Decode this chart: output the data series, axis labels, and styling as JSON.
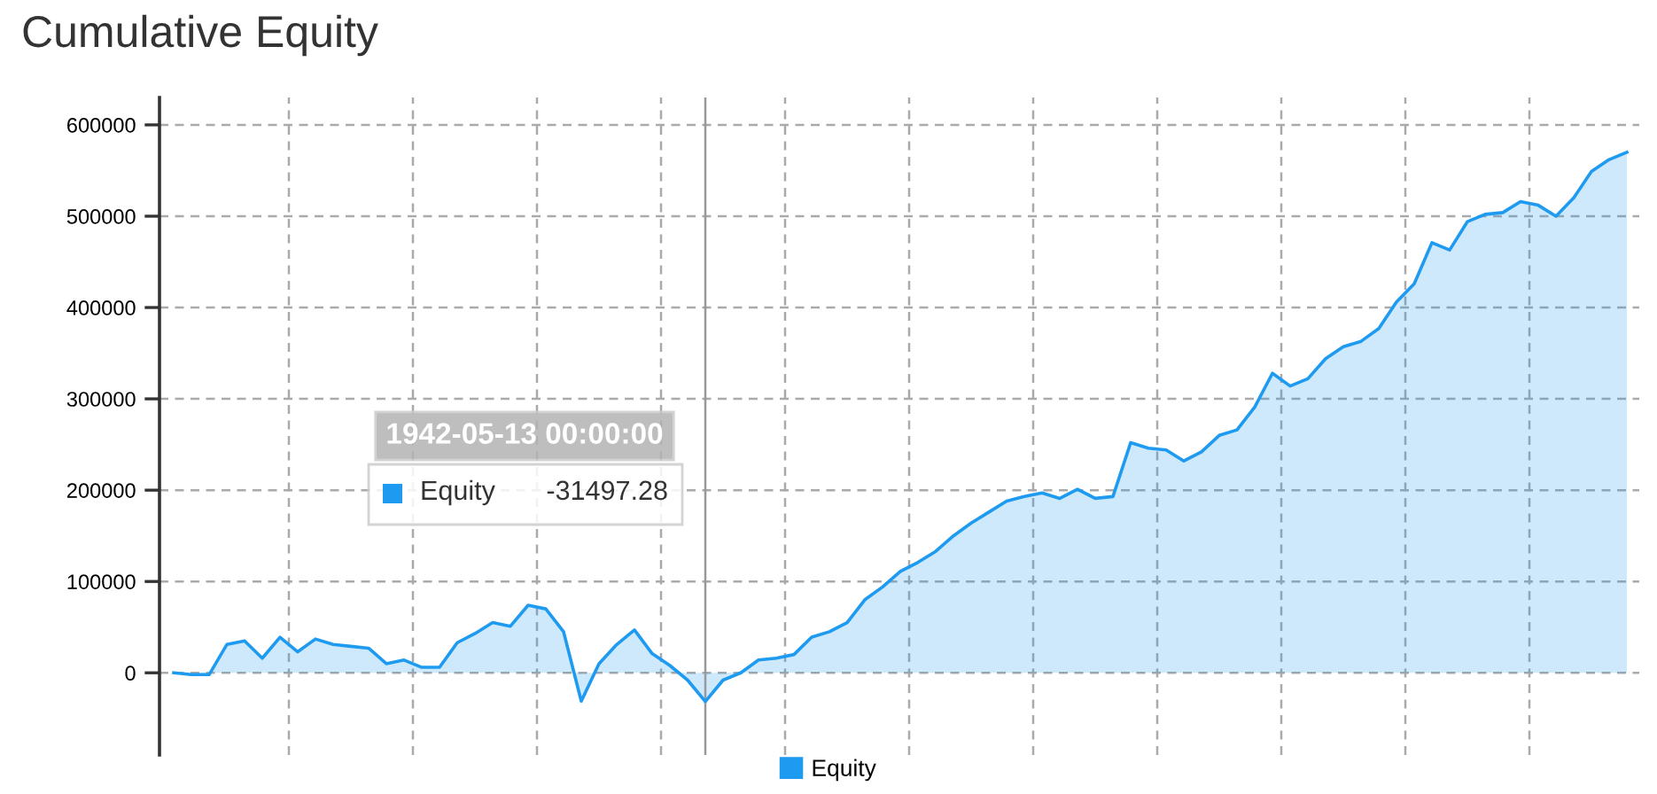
{
  "chart_data": {
    "type": "area",
    "title": "Cumulative Equity",
    "categories": [
      null,
      null,
      null,
      null,
      null,
      null,
      null,
      null,
      null,
      null,
      null,
      null,
      null,
      null,
      null,
      null,
      null,
      null,
      null,
      null,
      null,
      null,
      null,
      null,
      null,
      null,
      null,
      null,
      null,
      null,
      null,
      null,
      null,
      null,
      null,
      null,
      null,
      null,
      null,
      null,
      null,
      null,
      null,
      null,
      null,
      null,
      null,
      null,
      null,
      null,
      null,
      null,
      null,
      null,
      null,
      null,
      null,
      null,
      null,
      null,
      null,
      null,
      null,
      null,
      null,
      null,
      null,
      null,
      null,
      null,
      null,
      null,
      null,
      null,
      null,
      null,
      null,
      null,
      null,
      null,
      null,
      null,
      null
    ],
    "series": [
      {
        "name": "Equity",
        "color": "#1e9bf0",
        "values": [
          0,
          -2000,
          -2000,
          31000,
          35000,
          16000,
          39000,
          23000,
          37000,
          31000,
          29000,
          27000,
          10000,
          14000,
          6000,
          6000,
          33000,
          43000,
          55000,
          51000,
          74000,
          70000,
          45000,
          -31000,
          10000,
          31000,
          47000,
          21000,
          8000,
          -8000,
          -31497.28,
          -8000,
          0,
          14000,
          16000,
          20000,
          39000,
          45000,
          55000,
          80000,
          94000,
          111000,
          121000,
          133000,
          150000,
          164000,
          176000,
          188000,
          193000,
          197000,
          191000,
          201000,
          191000,
          193000,
          252000,
          246000,
          244000,
          232000,
          242000,
          260000,
          266000,
          291000,
          328000,
          314000,
          322000,
          344000,
          357000,
          363000,
          377000,
          406000,
          426000,
          471000,
          463000,
          494000,
          502000,
          504000,
          516000,
          512000,
          500000,
          520000,
          549000,
          562000,
          570000
        ]
      }
    ],
    "ylim": [
      -90000,
      630000
    ],
    "yticks": [
      0,
      100000,
      200000,
      300000,
      400000,
      500000,
      600000
    ],
    "grid": true,
    "legend": "bottom",
    "annotations": [
      "1942-05-13 00:00:00",
      "-31497.28"
    ]
  }
}
